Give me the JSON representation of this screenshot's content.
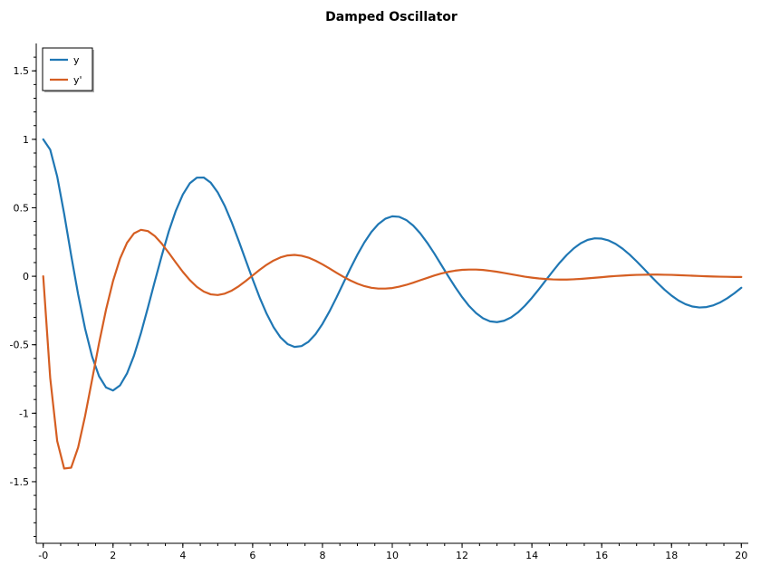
{
  "chart_data": {
    "type": "line",
    "title": "Damped Oscillator",
    "xlabel": "",
    "ylabel": "",
    "xlim": [
      -0.2,
      20.2
    ],
    "ylim": [
      -1.95,
      1.7
    ],
    "x_ticks": [
      0,
      2,
      4,
      6,
      8,
      10,
      12,
      14,
      16,
      18,
      20
    ],
    "x_tick_labels": [
      "-0",
      "2",
      "4",
      "6",
      "8",
      "10",
      "12",
      "14",
      "16",
      "18",
      "20"
    ],
    "y_ticks": [
      1.5,
      1,
      0.5,
      0,
      -0.5,
      -1,
      -1.5
    ],
    "y_tick_labels": [
      "1.5",
      "1",
      "0.5",
      "0",
      "-0.5",
      "-1",
      "-1.5"
    ],
    "grid": false,
    "legend_position": "top-left",
    "x": [
      0,
      0.2,
      0.4,
      0.6,
      0.8,
      1.0,
      1.2,
      1.4,
      1.6,
      1.8,
      2.0,
      2.2,
      2.4,
      2.6,
      2.8,
      3.0,
      3.2,
      3.4,
      3.6,
      3.8,
      4.0,
      4.2,
      4.4,
      4.6,
      4.8,
      5.0,
      5.2,
      5.4,
      5.6,
      5.8,
      6.0,
      6.2,
      6.4,
      6.6,
      6.8,
      7.0,
      7.2,
      7.4,
      7.6,
      7.8,
      8.0,
      8.2,
      8.4,
      8.6,
      8.8,
      9.0,
      9.2,
      9.4,
      9.6,
      9.8,
      10.0,
      10.2,
      10.4,
      10.6,
      10.8,
      11.0,
      11.2,
      11.4,
      11.6,
      11.8,
      12.0,
      12.2,
      12.4,
      12.6,
      12.8,
      13.0,
      13.2,
      13.4,
      13.6,
      13.8,
      14.0,
      14.2,
      14.4,
      14.6,
      14.8,
      15.0,
      15.2,
      15.4,
      15.6,
      15.8,
      16.0,
      16.2,
      16.4,
      16.6,
      16.8,
      17.0,
      17.2,
      17.4,
      17.6,
      17.8,
      18.0,
      18.2,
      18.4,
      18.6,
      18.8,
      19.0,
      19.2,
      19.4,
      19.6,
      19.8,
      20.0
    ],
    "series": [
      {
        "name": "y",
        "color": "#1F77B4",
        "values": [
          1.0,
          0.925,
          0.729,
          0.456,
          0.154,
          -0.132,
          -0.383,
          -0.586,
          -0.73,
          -0.812,
          -0.834,
          -0.797,
          -0.71,
          -0.58,
          -0.415,
          -0.228,
          -0.034,
          0.154,
          0.33,
          0.479,
          0.597,
          0.679,
          0.72,
          0.721,
          0.683,
          0.612,
          0.514,
          0.394,
          0.259,
          0.118,
          -0.022,
          -0.155,
          -0.273,
          -0.372,
          -0.447,
          -0.495,
          -0.516,
          -0.51,
          -0.478,
          -0.423,
          -0.348,
          -0.257,
          -0.156,
          -0.049,
          0.057,
          0.157,
          0.247,
          0.323,
          0.381,
          0.42,
          0.438,
          0.434,
          0.411,
          0.37,
          0.314,
          0.245,
          0.168,
          0.085,
          0.002,
          -0.078,
          -0.152,
          -0.217,
          -0.269,
          -0.307,
          -0.329,
          -0.335,
          -0.325,
          -0.301,
          -0.264,
          -0.215,
          -0.158,
          -0.095,
          -0.029,
          0.037,
          0.1,
          0.156,
          0.204,
          0.241,
          0.266,
          0.277,
          0.275,
          0.261,
          0.236,
          0.201,
          0.158,
          0.109,
          0.057,
          0.003,
          -0.049,
          -0.098,
          -0.141,
          -0.177,
          -0.204,
          -0.221,
          -0.228,
          -0.225,
          -0.212,
          -0.19,
          -0.16,
          -0.124,
          -0.084
        ]
      },
      {
        "name": "y'",
        "color": "#D55E22",
        "values": [
          0.0,
          -0.742,
          -1.203,
          -1.404,
          -1.398,
          -1.25,
          -1.02,
          -0.755,
          -0.488,
          -0.243,
          -0.035,
          0.128,
          0.244,
          0.313,
          0.339,
          0.33,
          0.293,
          0.237,
          0.17,
          0.1,
          0.032,
          -0.028,
          -0.077,
          -0.112,
          -0.132,
          -0.137,
          -0.127,
          -0.105,
          -0.073,
          -0.035,
          0.006,
          0.047,
          0.084,
          0.115,
          0.138,
          0.152,
          0.156,
          0.15,
          0.136,
          0.114,
          0.087,
          0.057,
          0.026,
          -0.004,
          -0.031,
          -0.054,
          -0.072,
          -0.084,
          -0.09,
          -0.09,
          -0.086,
          -0.076,
          -0.063,
          -0.047,
          -0.029,
          -0.012,
          0.005,
          0.02,
          0.032,
          0.041,
          0.047,
          0.049,
          0.049,
          0.046,
          0.04,
          0.033,
          0.024,
          0.015,
          0.006,
          -0.003,
          -0.01,
          -0.016,
          -0.02,
          -0.023,
          -0.024,
          -0.024,
          -0.022,
          -0.019,
          -0.015,
          -0.011,
          -0.007,
          -0.002,
          0.002,
          0.005,
          0.008,
          0.01,
          0.011,
          0.012,
          0.012,
          0.011,
          0.01,
          0.008,
          0.006,
          0.004,
          0.002,
          0.0,
          -0.002,
          -0.003,
          -0.004,
          -0.005,
          -0.005
        ]
      }
    ]
  }
}
